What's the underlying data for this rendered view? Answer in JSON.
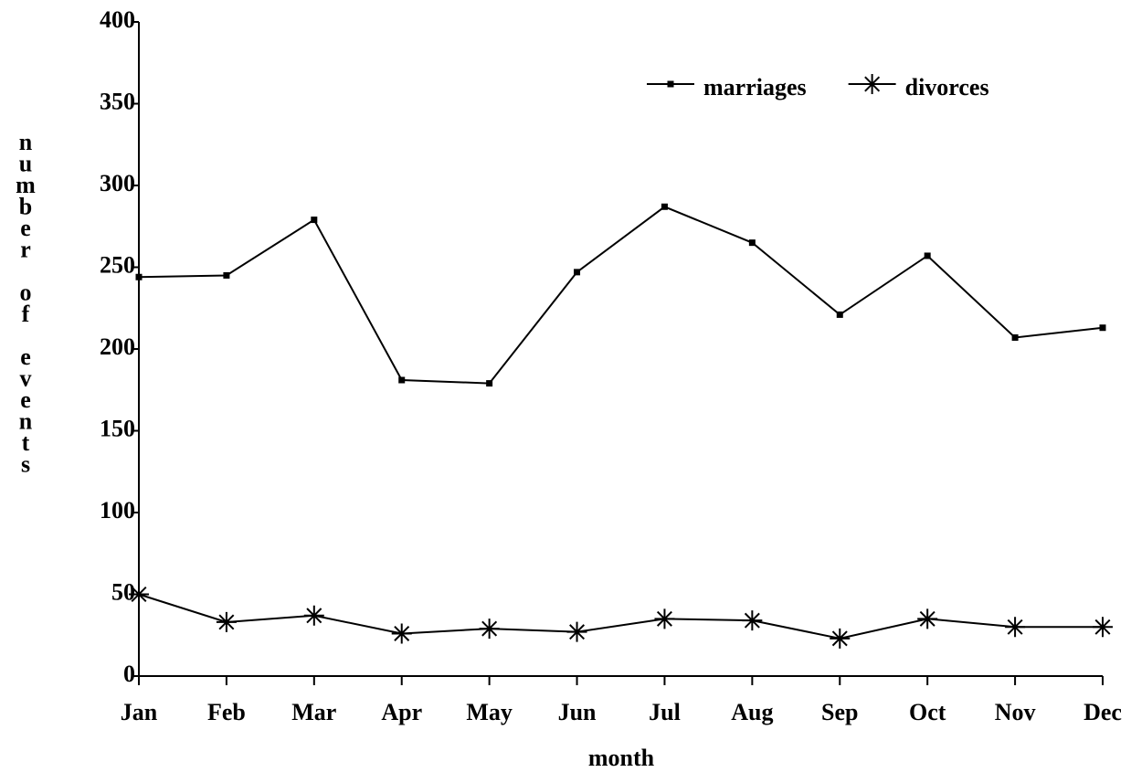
{
  "chart_data": {
    "type": "line",
    "categories": [
      "Jan",
      "Feb",
      "Mar",
      "Apr",
      "May",
      "Jun",
      "Jul",
      "Aug",
      "Sep",
      "Oct",
      "Nov",
      "Dec"
    ],
    "series": [
      {
        "name": "marriages",
        "color": "#000000",
        "marker": "square",
        "values": [
          244,
          245,
          279,
          181,
          179,
          247,
          287,
          265,
          221,
          257,
          207,
          213
        ]
      },
      {
        "name": "divorces",
        "color": "#000000",
        "marker": "star",
        "values": [
          50,
          33,
          37,
          26,
          29,
          27,
          35,
          34,
          23,
          35,
          30,
          30
        ]
      }
    ],
    "ylim": [
      0,
      400
    ],
    "yticks": [
      0,
      50,
      100,
      150,
      200,
      250,
      300,
      350,
      400
    ],
    "x_label": "month",
    "y_label": "number of events",
    "legend": "upper right",
    "grid": false
  }
}
